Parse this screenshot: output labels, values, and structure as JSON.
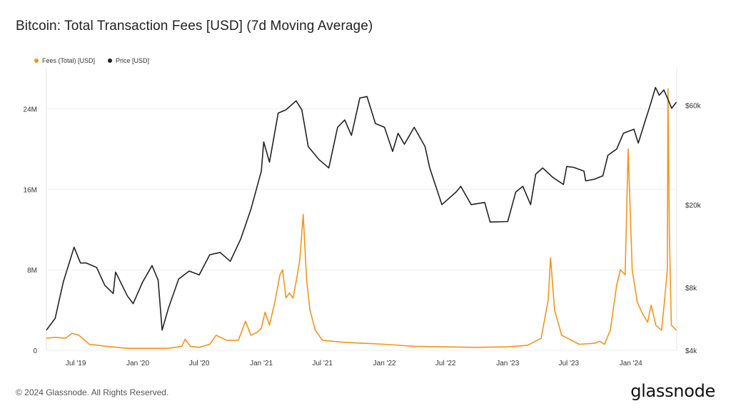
{
  "title": "Bitcoin: Total Transaction Fees [USD] (7d Moving Average)",
  "footer": {
    "copyright": "© 2024 Glassnode. All Rights Reserved.",
    "logo": "glassnode"
  },
  "colors": {
    "fees": "#f7931a",
    "price": "#222222",
    "grid": "#eeeeee"
  },
  "chart_data": {
    "type": "line",
    "title": "Bitcoin: Total Transaction Fees [USD] (7d Moving Average)",
    "legend_position": "top-left",
    "grid": true,
    "x_ticks": [
      "Jul '19",
      "Jan '20",
      "Jul '20",
      "Jan '21",
      "Jul '21",
      "Jan '22",
      "Jul '22",
      "Jan '23",
      "Jul '23",
      "Jan '24"
    ],
    "y_left": {
      "scale": "linear",
      "range": [
        0,
        28000000
      ],
      "ticks": [
        0,
        8000000,
        16000000,
        24000000
      ],
      "tick_labels": [
        "0",
        "8M",
        "16M",
        "24M"
      ]
    },
    "y_right": {
      "scale": "log",
      "range": [
        4000,
        90000
      ],
      "ticks": [
        4000,
        8000,
        20000,
        60000
      ],
      "tick_labels": [
        "$4k",
        "$8k",
        "$20k",
        "$60k"
      ]
    },
    "series": [
      {
        "name": "Fees (Total) [USD]",
        "axis": "left",
        "points": [
          [
            "2019-04-05",
            1200000
          ],
          [
            "2019-05-01",
            1300000
          ],
          [
            "2019-06-01",
            1200000
          ],
          [
            "2019-06-20",
            1700000
          ],
          [
            "2019-07-10",
            1500000
          ],
          [
            "2019-08-10",
            600000
          ],
          [
            "2019-10-01",
            400000
          ],
          [
            "2019-12-01",
            200000
          ],
          [
            "2020-02-01",
            200000
          ],
          [
            "2020-04-01",
            200000
          ],
          [
            "2020-05-10",
            400000
          ],
          [
            "2020-05-20",
            1100000
          ],
          [
            "2020-06-05",
            400000
          ],
          [
            "2020-07-01",
            300000
          ],
          [
            "2020-08-01",
            600000
          ],
          [
            "2020-08-20",
            1500000
          ],
          [
            "2020-09-20",
            1000000
          ],
          [
            "2020-10-25",
            1000000
          ],
          [
            "2020-11-15",
            2900000
          ],
          [
            "2020-12-01",
            1500000
          ],
          [
            "2020-12-20",
            1800000
          ],
          [
            "2021-01-01",
            2200000
          ],
          [
            "2021-01-12",
            3800000
          ],
          [
            "2021-01-25",
            2500000
          ],
          [
            "2021-02-10",
            4800000
          ],
          [
            "2021-02-25",
            7500000
          ],
          [
            "2021-03-05",
            8000000
          ],
          [
            "2021-03-15",
            5200000
          ],
          [
            "2021-03-25",
            5700000
          ],
          [
            "2021-04-05",
            5200000
          ],
          [
            "2021-04-15",
            7000000
          ],
          [
            "2021-04-25",
            9000000
          ],
          [
            "2021-05-05",
            13500000
          ],
          [
            "2021-05-15",
            7000000
          ],
          [
            "2021-05-25",
            4000000
          ],
          [
            "2021-06-10",
            2000000
          ],
          [
            "2021-07-01",
            1000000
          ],
          [
            "2021-09-01",
            800000
          ],
          [
            "2021-11-01",
            700000
          ],
          [
            "2022-01-01",
            600000
          ],
          [
            "2022-04-01",
            400000
          ],
          [
            "2022-07-01",
            350000
          ],
          [
            "2022-10-01",
            300000
          ],
          [
            "2023-01-01",
            350000
          ],
          [
            "2023-03-01",
            500000
          ],
          [
            "2023-04-10",
            1200000
          ],
          [
            "2023-05-01",
            5000000
          ],
          [
            "2023-05-08",
            9200000
          ],
          [
            "2023-05-20",
            4000000
          ],
          [
            "2023-06-10",
            1500000
          ],
          [
            "2023-08-01",
            600000
          ],
          [
            "2023-09-15",
            700000
          ],
          [
            "2023-10-01",
            900000
          ],
          [
            "2023-10-15",
            600000
          ],
          [
            "2023-11-01",
            2000000
          ],
          [
            "2023-11-20",
            6500000
          ],
          [
            "2023-12-01",
            8000000
          ],
          [
            "2023-12-15",
            7500000
          ],
          [
            "2023-12-24",
            20000000
          ],
          [
            "2024-01-05",
            8000000
          ],
          [
            "2024-01-20",
            4800000
          ],
          [
            "2024-02-05",
            3600000
          ],
          [
            "2024-02-20",
            2800000
          ],
          [
            "2024-03-01",
            4500000
          ],
          [
            "2024-03-15",
            2500000
          ],
          [
            "2024-04-01",
            2000000
          ],
          [
            "2024-04-10",
            5000000
          ],
          [
            "2024-04-18",
            8000000
          ],
          [
            "2024-04-20",
            26000000
          ],
          [
            "2024-04-24",
            12000000
          ],
          [
            "2024-04-30",
            2500000
          ],
          [
            "2024-05-15",
            2000000
          ]
        ]
      },
      {
        "name": "Price [USD]",
        "axis": "right",
        "points": [
          [
            "2019-04-05",
            5000
          ],
          [
            "2019-05-01",
            5700
          ],
          [
            "2019-05-25",
            8500
          ],
          [
            "2019-06-26",
            12500
          ],
          [
            "2019-07-15",
            10500
          ],
          [
            "2019-08-01",
            10500
          ],
          [
            "2019-09-01",
            10000
          ],
          [
            "2019-09-25",
            8200
          ],
          [
            "2019-10-20",
            7500
          ],
          [
            "2019-10-27",
            9500
          ],
          [
            "2019-12-01",
            7300
          ],
          [
            "2019-12-18",
            6700
          ],
          [
            "2020-01-15",
            8500
          ],
          [
            "2020-02-12",
            10200
          ],
          [
            "2020-03-01",
            8700
          ],
          [
            "2020-03-13",
            5000
          ],
          [
            "2020-04-01",
            6400
          ],
          [
            "2020-05-01",
            8800
          ],
          [
            "2020-06-01",
            9600
          ],
          [
            "2020-07-01",
            9200
          ],
          [
            "2020-08-01",
            11500
          ],
          [
            "2020-09-01",
            11800
          ],
          [
            "2020-10-01",
            10700
          ],
          [
            "2020-11-01",
            13700
          ],
          [
            "2020-12-01",
            19000
          ],
          [
            "2021-01-01",
            29000
          ],
          [
            "2021-01-08",
            40000
          ],
          [
            "2021-01-25",
            32000
          ],
          [
            "2021-02-20",
            55000
          ],
          [
            "2021-03-15",
            57000
          ],
          [
            "2021-04-14",
            63000
          ],
          [
            "2021-05-01",
            57000
          ],
          [
            "2021-05-20",
            38000
          ],
          [
            "2021-06-20",
            33000
          ],
          [
            "2021-07-20",
            30000
          ],
          [
            "2021-08-15",
            47000
          ],
          [
            "2021-09-05",
            51000
          ],
          [
            "2021-09-25",
            43000
          ],
          [
            "2021-10-20",
            65000
          ],
          [
            "2021-11-10",
            66000
          ],
          [
            "2021-12-05",
            49000
          ],
          [
            "2022-01-01",
            47000
          ],
          [
            "2022-01-25",
            36000
          ],
          [
            "2022-02-10",
            44000
          ],
          [
            "2022-03-01",
            39000
          ],
          [
            "2022-03-30",
            47000
          ],
          [
            "2022-05-01",
            38000
          ],
          [
            "2022-05-15",
            30000
          ],
          [
            "2022-06-20",
            20000
          ],
          [
            "2022-08-01",
            23000
          ],
          [
            "2022-08-15",
            24500
          ],
          [
            "2022-09-15",
            20000
          ],
          [
            "2022-10-25",
            20500
          ],
          [
            "2022-11-10",
            16500
          ],
          [
            "2023-01-01",
            16600
          ],
          [
            "2023-01-25",
            23000
          ],
          [
            "2023-02-15",
            24500
          ],
          [
            "2023-03-10",
            20000
          ],
          [
            "2023-03-25",
            28000
          ],
          [
            "2023-04-15",
            30000
          ],
          [
            "2023-05-15",
            27000
          ],
          [
            "2023-06-15",
            25000
          ],
          [
            "2023-06-25",
            30500
          ],
          [
            "2023-07-15",
            30200
          ],
          [
            "2023-08-15",
            29000
          ],
          [
            "2023-08-20",
            26000
          ],
          [
            "2023-09-15",
            26500
          ],
          [
            "2023-10-10",
            27500
          ],
          [
            "2023-10-25",
            34500
          ],
          [
            "2023-11-20",
            37000
          ],
          [
            "2023-12-10",
            44000
          ],
          [
            "2024-01-10",
            46000
          ],
          [
            "2024-01-23",
            39500
          ],
          [
            "2024-02-15",
            52000
          ],
          [
            "2024-03-01",
            62000
          ],
          [
            "2024-03-14",
            73000
          ],
          [
            "2024-03-25",
            67000
          ],
          [
            "2024-04-08",
            71000
          ],
          [
            "2024-04-20",
            64000
          ],
          [
            "2024-05-01",
            58000
          ],
          [
            "2024-05-15",
            62000
          ]
        ]
      }
    ]
  }
}
